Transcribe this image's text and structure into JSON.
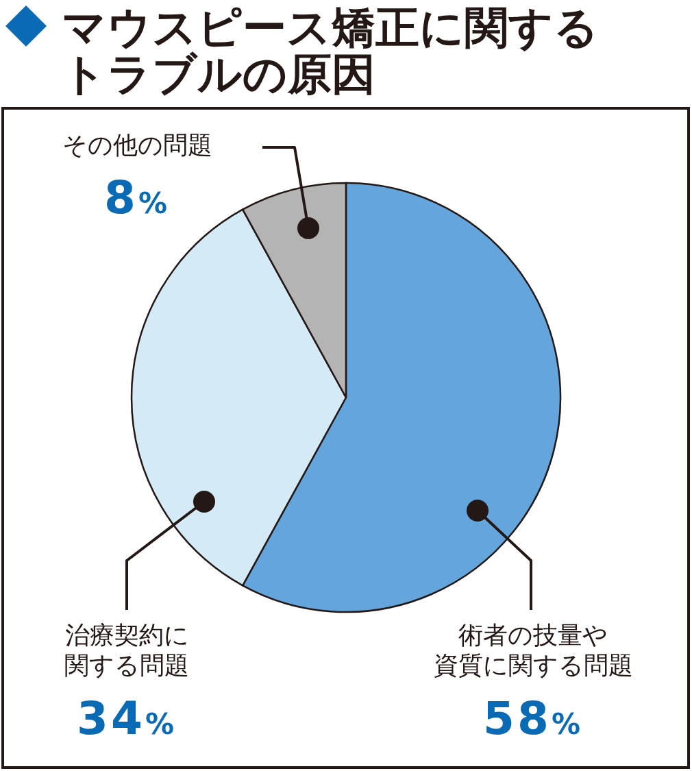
{
  "chart_data": {
    "type": "pie",
    "title": "マウスピース矯正に関するトラブルの原因",
    "categories": [
      "術者の技量や資質に関する問題",
      "治療契約に関する問題",
      "その他の問題"
    ],
    "values": [
      58,
      34,
      8
    ],
    "value_labels": [
      "58%",
      "34%",
      "8%"
    ],
    "colors": [
      "#64a6dc",
      "#d4eaf7",
      "#b4b4b4"
    ]
  }
}
